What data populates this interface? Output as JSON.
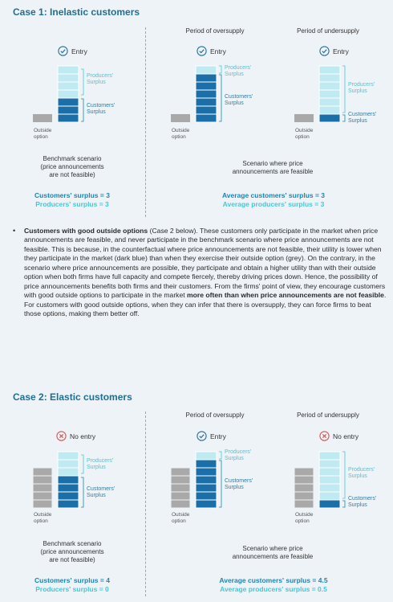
{
  "case1": {
    "title": "Case 1: Inelastic customers",
    "panel_oversupply_title": "Period of oversupply",
    "panel_undersupply_title": "Period of undersupply",
    "benchmark": {
      "badge": "Entry",
      "producers_label_1": "Producers'",
      "producers_label_2": "Surplus",
      "customers_label_1": "Customers'",
      "customers_label_2": "Surplus",
      "outside_1": "Outside",
      "outside_2": "option",
      "caption_1": "Benchmark scenario",
      "caption_2": "(price announcements",
      "caption_3": "are not feasible)",
      "result_customers": "Customers' surplus = 3",
      "result_producers": "Producers' surplus = 3"
    },
    "oversupply": {
      "badge": "Entry",
      "producers_label_1": "Producers'",
      "producers_label_2": "Surplus",
      "customers_label_1": "Customers'",
      "customers_label_2": "Surplus",
      "outside_1": "Outside",
      "outside_2": "option"
    },
    "undersupply": {
      "badge": "Entry",
      "producers_label_1": "Producers'",
      "producers_label_2": "Surplus",
      "customers_label_1": "Customers'",
      "customers_label_2": "Surplus",
      "outside_1": "Outside",
      "outside_2": "option"
    },
    "feasible_caption_1": "Scenario where price",
    "feasible_caption_2": "announcements are feasible",
    "feasible_result_customers": "Average customers' surplus = 3",
    "feasible_result_producers": "Average producers' surplus = 3"
  },
  "paragraph": {
    "lead": "Customers with good outside options",
    "t1": " (Case 2 below). These customers only participate in the market when price announcements are feasible, and never participate in the benchmark scenario where price announcements are not feasible. This is because, in the counterfactual where price announcements are not feasible, their utility is lower when they participate in the market (dark blue) than when they exercise their outside option (grey). On the contrary, in the scenario where price announcements are possible, they participate and obtain a higher utility than with their outside option when both firms have full capacity and compete fiercely, thereby driving prices down. Hence, the possibility of price announcements benefits both firms and their customers. From the firms' point of view, they encourage customers with good outside options to participate in the market ",
    "emph": "more often than when price announcements are not feasible",
    "t2": ". For customers with good outside options, when they can infer that there is oversupply, they can force firms to beat those options, making them better off."
  },
  "case2": {
    "title": "Case 2: Elastic customers",
    "panel_oversupply_title": "Period of oversupply",
    "panel_undersupply_title": "Period of undersupply",
    "benchmark": {
      "badge": "No entry",
      "producers_label_1": "Producers'",
      "producers_label_2": "Surplus",
      "customers_label_1": "Customers'",
      "customers_label_2": "Surplus",
      "outside_1": "Outside",
      "outside_2": "option",
      "caption_1": "Benchmark scenario",
      "caption_2": "(price announcements",
      "caption_3": "are not feasible)",
      "result_customers": "Customers' surplus = 4",
      "result_producers": "Producers' surplus = 0"
    },
    "oversupply": {
      "badge": "Entry",
      "producers_label_1": "Producers'",
      "producers_label_2": "Surplus",
      "customers_label_1": "Customers'",
      "customers_label_2": "Surplus",
      "outside_1": "Outside",
      "outside_2": "option"
    },
    "undersupply": {
      "badge": "No entry",
      "producers_label_1": "Producers'",
      "producers_label_2": "Surplus",
      "customers_label_1": "Customers'",
      "customers_label_2": "Surplus",
      "outside_1": "Outside",
      "outside_2": "option"
    },
    "feasible_caption_1": "Scenario where price",
    "feasible_caption_2": "announcements are feasible",
    "feasible_result_customers": "Average customers' surplus = 4.5",
    "feasible_result_producers": "Average producers' surplus = 0.5"
  },
  "colors": {
    "title": "#1f6f92",
    "light_block": "#bfeaf2",
    "dark_block": "#1a6fa8",
    "grey_block": "#a9a9a9",
    "customers_text": "#1a86b5",
    "producers_text": "#47c7d6",
    "check": "#2c6f95",
    "cross": "#d9534f"
  }
}
